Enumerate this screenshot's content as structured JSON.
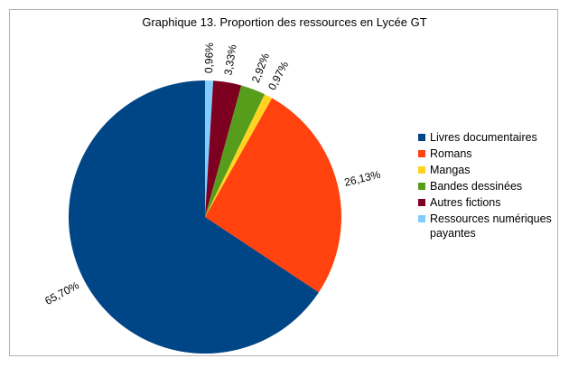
{
  "chart_data": {
    "type": "pie",
    "title": "Graphique 13. Proportion des ressources en Lycée GT",
    "categories": [
      "Livres documentaires",
      "Romans",
      "Mangas",
      "Bandes dessinées",
      "Autres fictions",
      "Ressources numériques payantes"
    ],
    "values": [
      65.7,
      26.13,
      0.97,
      2.92,
      3.33,
      0.96
    ],
    "labels": [
      "65,70%",
      "26,13%",
      "0,97%",
      "2,92%",
      "3,33%",
      "0,96%"
    ],
    "colors": [
      "#004586",
      "#ff420e",
      "#ffd320",
      "#579d1c",
      "#7e0021",
      "#83caff"
    ],
    "legend_position": "right"
  }
}
